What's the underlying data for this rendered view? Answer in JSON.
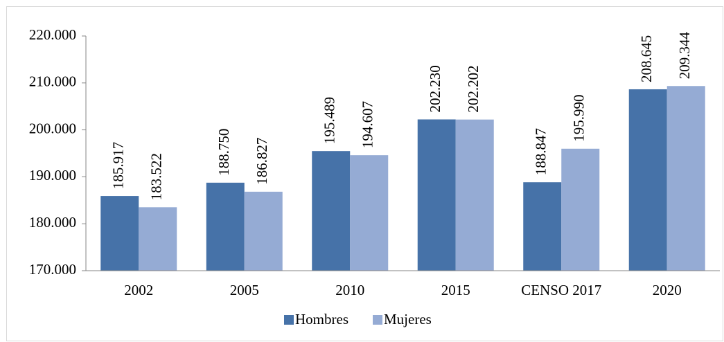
{
  "chart_data": {
    "type": "bar",
    "categories": [
      "2002",
      "2005",
      "2010",
      "2015",
      "CENSO 2017",
      "2020"
    ],
    "series": [
      {
        "name": "Hombres",
        "color": "#4672a8",
        "values": [
          185917,
          188750,
          195489,
          202230,
          188847,
          208645
        ],
        "value_labels": [
          "185.917",
          "188.750",
          "195.489",
          "202.230",
          "188.847",
          "208.645"
        ]
      },
      {
        "name": "Mujeres",
        "color": "#95abd4",
        "values": [
          183522,
          186827,
          194607,
          202202,
          195990,
          209344
        ],
        "value_labels": [
          "183.522",
          "186.827",
          "194.607",
          "202.202",
          "195.990",
          "209.344"
        ]
      }
    ],
    "ylim": [
      170000,
      220000
    ],
    "yticks": [
      {
        "value": 170000,
        "label": "170.000"
      },
      {
        "value": 180000,
        "label": "180.000"
      },
      {
        "value": 190000,
        "label": "190.000"
      },
      {
        "value": 200000,
        "label": "200.000"
      },
      {
        "value": 210000,
        "label": "210.000"
      },
      {
        "value": 220000,
        "label": "220.000"
      }
    ],
    "grid": false,
    "legend": "bottom"
  }
}
